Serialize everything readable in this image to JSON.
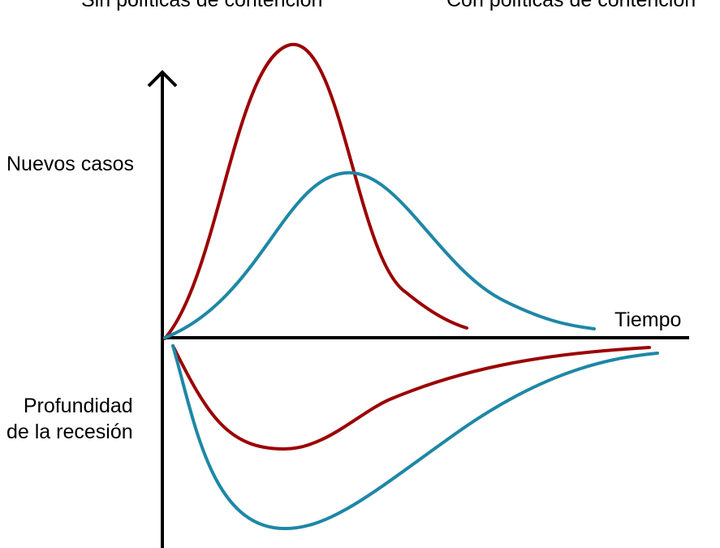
{
  "legend": {
    "red_label": "Sin políticas de contención",
    "blue_label": "Con políticas de contención"
  },
  "axes": {
    "y_top_label": "Nuevos casos",
    "y_bottom_label_line1": "Profundidad",
    "y_bottom_label_line2": "de la recesión",
    "x_label": "Tiempo"
  },
  "colors": {
    "red": "#9b0000",
    "blue": "#1e87a6",
    "axis": "#000000"
  },
  "icons": {
    "y_axis_arrow": "arrow-up-icon"
  }
}
